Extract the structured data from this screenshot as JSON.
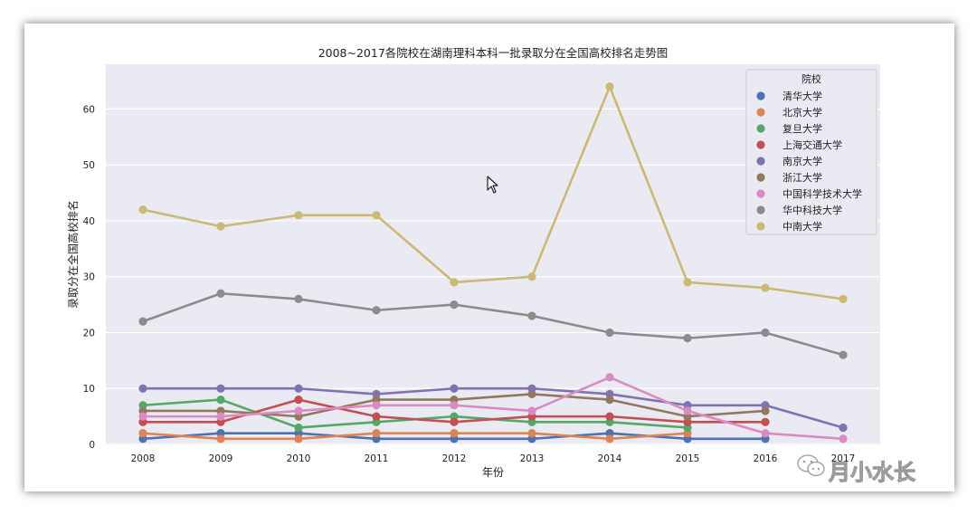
{
  "chart_data": {
    "type": "line",
    "title": "2008~2017各院校在湖南理科本科一批录取分在全国高校排名走势图",
    "xlabel": "年份",
    "ylabel": "录取分在全国高校排名",
    "x": [
      "2008",
      "2009",
      "2010",
      "2011",
      "2012",
      "2013",
      "2014",
      "2015",
      "2016",
      "2017"
    ],
    "ylim": [
      0,
      68
    ],
    "yticks": [
      0,
      10,
      20,
      30,
      40,
      50,
      60
    ],
    "grid": true,
    "background": "#eaeaf2",
    "legend": {
      "title": "院校",
      "placement": "top-right"
    },
    "series": [
      {
        "name": "清华大学",
        "color": "#4c72b0",
        "values": [
          1,
          2,
          2,
          1,
          1,
          1,
          2,
          1,
          1,
          null
        ]
      },
      {
        "name": "北京大学",
        "color": "#dd8452",
        "values": [
          2,
          1,
          1,
          2,
          2,
          2,
          1,
          2,
          null,
          null
        ]
      },
      {
        "name": "复旦大学",
        "color": "#55a868",
        "values": [
          7,
          8,
          3,
          4,
          5,
          4,
          4,
          3,
          null,
          null
        ]
      },
      {
        "name": "上海交通大学",
        "color": "#c44e52",
        "values": [
          4,
          4,
          8,
          5,
          4,
          5,
          5,
          4,
          4,
          null
        ]
      },
      {
        "name": "南京大学",
        "color": "#8172b3",
        "values": [
          10,
          10,
          10,
          9,
          10,
          10,
          9,
          7,
          7,
          3
        ]
      },
      {
        "name": "浙江大学",
        "color": "#937860",
        "values": [
          6,
          6,
          5,
          8,
          8,
          9,
          8,
          5,
          6,
          null
        ]
      },
      {
        "name": "中国科学技术大学",
        "color": "#da8bc3",
        "values": [
          5,
          5,
          6,
          7,
          7,
          6,
          12,
          6,
          2,
          1
        ]
      },
      {
        "name": "华中科技大学",
        "color": "#8c8c8c",
        "values": [
          22,
          27,
          26,
          24,
          25,
          23,
          20,
          19,
          20,
          16
        ]
      },
      {
        "name": "中南大学",
        "color": "#ccb974",
        "values": [
          42,
          39,
          41,
          41,
          29,
          30,
          64,
          29,
          28,
          26
        ]
      }
    ]
  },
  "watermark": {
    "text": "月小水长",
    "icon": "wechat-icon"
  }
}
